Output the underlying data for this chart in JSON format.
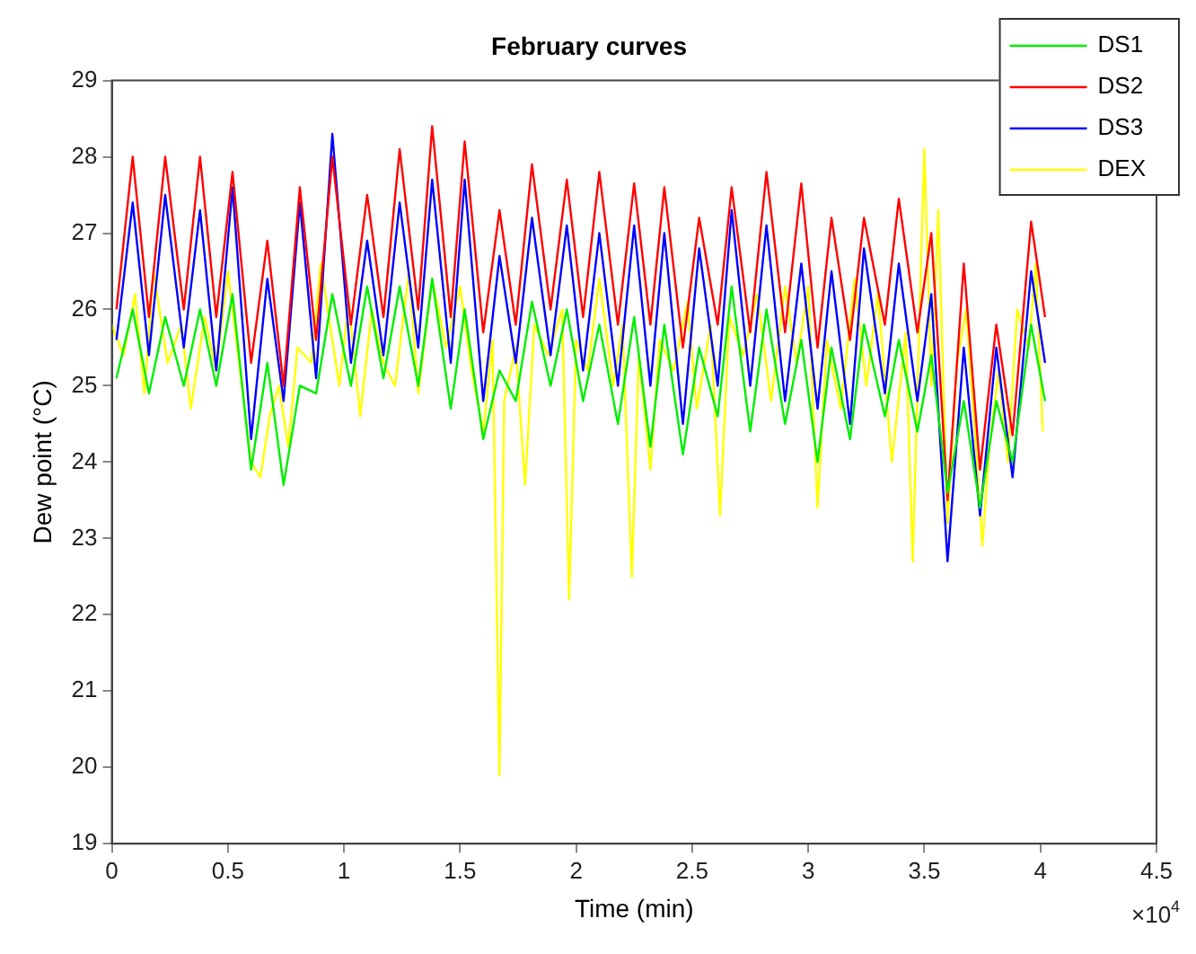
{
  "chart_data": {
    "type": "line",
    "title": "February curves",
    "xlabel": "Time (min)",
    "ylabel": "Dew point (°C)",
    "annotations": [
      "×10$^{4}$"
    ],
    "x": [
      0.02,
      0.09,
      0.16,
      0.23,
      0.31,
      0.38,
      0.45,
      0.52,
      0.6,
      0.67,
      0.74,
      0.81,
      0.88,
      0.95,
      1.03,
      1.1,
      1.17,
      1.24,
      1.32,
      1.38,
      1.46,
      1.52,
      1.6,
      1.67,
      1.74,
      1.81,
      1.89,
      1.96,
      2.03,
      2.1,
      2.18,
      2.25,
      2.32,
      2.38,
      2.46,
      2.53,
      2.61,
      2.67,
      2.75,
      2.82,
      2.9,
      2.97,
      3.04,
      3.1,
      3.18,
      3.24,
      3.33,
      3.39,
      3.47,
      3.53,
      3.6,
      3.67,
      3.74,
      3.81,
      3.88,
      3.96,
      4.02
    ],
    "series": [
      {
        "name": "DS1",
        "color": "#00ee00",
        "values": [
          25.1,
          26.0,
          24.9,
          25.9,
          25.0,
          26.0,
          25.0,
          26.2,
          23.9,
          25.3,
          23.7,
          25.0,
          24.9,
          26.2,
          25.0,
          26.3,
          25.1,
          26.3,
          25.0,
          26.4,
          24.7,
          26.0,
          24.3,
          25.2,
          24.8,
          26.1,
          25.0,
          26.0,
          24.8,
          25.8,
          24.5,
          25.9,
          24.2,
          25.8,
          24.1,
          25.5,
          24.6,
          26.3,
          24.4,
          26.0,
          24.5,
          25.6,
          24.0,
          25.5,
          24.3,
          25.8,
          24.6,
          25.6,
          24.4,
          25.4,
          23.6,
          24.8,
          23.4,
          24.8,
          24.0,
          25.8,
          24.8
        ]
      },
      {
        "name": "DS2",
        "color": "#ff0000",
        "values": [
          26.0,
          28.0,
          25.9,
          28.0,
          26.0,
          28.0,
          25.9,
          27.8,
          25.3,
          26.9,
          25.0,
          27.6,
          25.6,
          28.0,
          25.8,
          27.5,
          25.9,
          28.1,
          26.0,
          28.4,
          25.9,
          28.2,
          25.7,
          27.3,
          25.8,
          27.9,
          26.0,
          27.7,
          25.9,
          27.8,
          25.8,
          27.65,
          25.8,
          27.6,
          25.5,
          27.2,
          25.8,
          27.6,
          25.7,
          27.8,
          25.7,
          27.65,
          25.5,
          27.2,
          25.6,
          27.2,
          25.8,
          27.45,
          25.7,
          27.0,
          23.5,
          26.6,
          23.9,
          25.8,
          24.35,
          27.15,
          25.9
        ]
      },
      {
        "name": "DS3",
        "color": "#0000ff",
        "values": [
          25.6,
          27.4,
          25.4,
          27.5,
          25.5,
          27.3,
          25.2,
          27.6,
          24.3,
          26.4,
          24.8,
          27.4,
          25.1,
          28.3,
          25.3,
          26.9,
          25.4,
          27.4,
          25.5,
          27.7,
          25.3,
          27.7,
          24.8,
          26.7,
          25.3,
          27.2,
          25.4,
          27.1,
          25.2,
          27.0,
          25.0,
          27.1,
          25.0,
          27.0,
          24.5,
          26.8,
          25.0,
          27.3,
          25.0,
          27.1,
          24.8,
          26.6,
          24.7,
          26.5,
          24.5,
          26.8,
          24.9,
          26.6,
          24.8,
          26.2,
          22.7,
          25.5,
          23.3,
          25.5,
          23.8,
          26.5,
          25.3
        ]
      },
      {
        "name": "DEX",
        "color": "#ffff00",
        "x": [
          0.0,
          0.05,
          0.1,
          0.14,
          0.18,
          0.24,
          0.3,
          0.34,
          0.4,
          0.45,
          0.5,
          0.56,
          0.6,
          0.64,
          0.68,
          0.72,
          0.76,
          0.8,
          0.86,
          0.9,
          0.94,
          0.98,
          1.02,
          1.07,
          1.12,
          1.17,
          1.22,
          1.28,
          1.32,
          1.38,
          1.44,
          1.5,
          1.55,
          1.6,
          1.64,
          1.67,
          1.69,
          1.74,
          1.78,
          1.82,
          1.88,
          1.94,
          1.97,
          2.0,
          2.05,
          2.1,
          2.16,
          2.2,
          2.24,
          2.27,
          2.32,
          2.36,
          2.42,
          2.48,
          2.52,
          2.58,
          2.62,
          2.66,
          2.72,
          2.78,
          2.84,
          2.9,
          2.95,
          3.0,
          3.04,
          3.08,
          3.14,
          3.2,
          3.25,
          3.3,
          3.36,
          3.42,
          3.45,
          3.48,
          3.5,
          3.53,
          3.56,
          3.6,
          3.64,
          3.68,
          3.72,
          3.75,
          3.78,
          3.82,
          3.86,
          3.9,
          3.95,
          3.98,
          4.01
        ],
        "values": [
          25.8,
          25.4,
          26.2,
          24.9,
          26.5,
          25.3,
          25.8,
          24.7,
          25.9,
          25.2,
          26.5,
          25.0,
          24.0,
          23.8,
          24.6,
          25.0,
          24.2,
          25.5,
          25.3,
          26.6,
          25.8,
          25.0,
          26.1,
          24.6,
          26.0,
          25.3,
          25.0,
          26.5,
          24.9,
          26.4,
          25.5,
          26.3,
          25.2,
          24.4,
          25.6,
          19.9,
          24.8,
          25.5,
          23.7,
          25.8,
          25.4,
          26.0,
          22.2,
          25.6,
          25.2,
          26.4,
          25.0,
          25.8,
          22.5,
          25.4,
          23.9,
          25.6,
          25.2,
          26.1,
          24.7,
          25.8,
          23.3,
          25.9,
          25.4,
          26.2,
          24.8,
          26.3,
          25.3,
          26.3,
          23.4,
          25.6,
          24.7,
          26.4,
          25.0,
          26.2,
          24.0,
          25.7,
          22.7,
          26.0,
          28.1,
          25.0,
          27.3,
          23.2,
          25.3,
          26.0,
          24.3,
          22.9,
          24.2,
          25.2,
          24.0,
          26.0,
          25.5,
          26.6,
          24.4
        ]
      }
    ],
    "xlim": [
      0,
      4.5
    ],
    "xticks": [
      0,
      0.5,
      1,
      1.5,
      2,
      2.5,
      3,
      3.5,
      4,
      4.5
    ],
    "ylim": [
      19,
      29
    ],
    "yticks": [
      19,
      20,
      21,
      22,
      23,
      24,
      25,
      26,
      27,
      28,
      29
    ],
    "grid": false,
    "legend": "top right",
    "marker": "none",
    "line_style": "solid"
  }
}
